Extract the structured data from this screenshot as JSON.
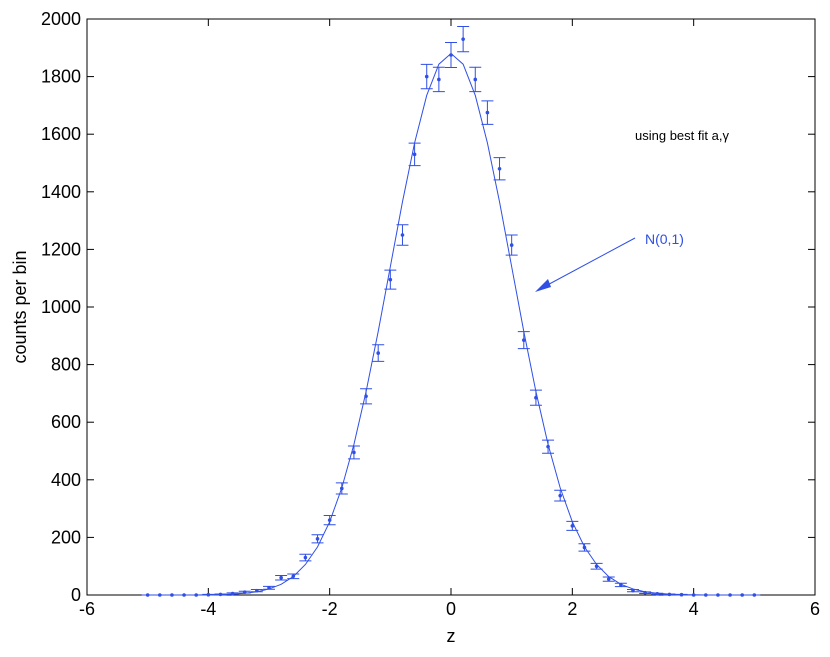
{
  "chart_data": {
    "type": "errorbar",
    "x": [
      -5,
      -4.8,
      -4.6,
      -4.4,
      -4.2,
      -4,
      -3.8,
      -3.6,
      -3.4,
      -3.2,
      -3,
      -2.8,
      -2.6,
      -2.4,
      -2.2,
      -2,
      -1.8,
      -1.6,
      -1.4,
      -1.2,
      -1,
      -0.8,
      -0.6,
      -0.4,
      -0.2,
      0,
      0.2,
      0.4,
      0.6,
      0.8,
      1,
      1.2,
      1.4,
      1.6,
      1.8,
      2,
      2.2,
      2.4,
      2.6,
      2.8,
      3,
      3.2,
      3.4,
      3.6,
      3.8,
      4,
      4.2,
      4.4,
      4.6,
      4.8,
      5
    ],
    "values": [
      0,
      0,
      0,
      0,
      0,
      1,
      2,
      5,
      10,
      15,
      25,
      60,
      65,
      130,
      195,
      260,
      370,
      495,
      690,
      840,
      1095,
      1250,
      1530,
      1800,
      1790,
      1875,
      1930,
      1790,
      1675,
      1480,
      1215,
      885,
      685,
      515,
      345,
      240,
      165,
      100,
      55,
      35,
      15,
      8,
      4,
      2,
      1,
      0,
      0,
      0,
      0,
      0,
      0
    ],
    "errors": [
      0,
      0,
      0,
      0,
      0,
      1,
      1.4,
      2.2,
      3.2,
      3.9,
      5,
      7.7,
      8.1,
      11.4,
      14,
      16.1,
      19.2,
      22.2,
      26.3,
      29,
      33.1,
      35.4,
      39.1,
      42.4,
      42.3,
      43.3,
      43.9,
      42.3,
      40.9,
      38.5,
      34.9,
      29.7,
      26.2,
      22.7,
      18.6,
      15.5,
      12.8,
      10,
      7.4,
      5.9,
      3.9,
      2.8,
      2,
      1.4,
      1,
      0,
      0,
      0,
      0,
      0,
      0
    ],
    "fit": {
      "values": [
        0,
        0,
        0,
        0,
        0,
        1,
        1,
        3,
        6,
        11,
        21,
        37,
        64,
        106,
        167,
        254,
        372,
        523,
        706,
        915,
        1140,
        1365,
        1570,
        1735,
        1843,
        1880,
        1843,
        1735,
        1570,
        1365,
        1140,
        915,
        706,
        523,
        372,
        254,
        167,
        106,
        64,
        37,
        21,
        11,
        6,
        3,
        1,
        1,
        0,
        0,
        0,
        0,
        0
      ]
    },
    "color": "#2f4fe6",
    "xlabel": "z",
    "ylabel": "counts per bin",
    "xlim": [
      -6,
      6
    ],
    "xticks": [
      -6,
      -4,
      -2,
      0,
      2,
      4,
      6
    ],
    "ylim": [
      0,
      2000
    ],
    "yticks": [
      0,
      200,
      400,
      600,
      800,
      1000,
      1200,
      1400,
      1600,
      1800,
      2000
    ],
    "grid": false,
    "annotations": [
      "using best fit a,γ",
      "N(0,1)"
    ]
  }
}
